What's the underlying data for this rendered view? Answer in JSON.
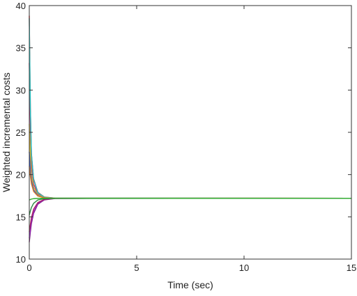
{
  "chart_data": {
    "type": "line",
    "title": "",
    "xlabel": "Time (sec)",
    "ylabel": "Weighted incremental costs",
    "xlim": [
      0,
      15
    ],
    "ylim": [
      10,
      40
    ],
    "x_ticks": [
      0,
      5,
      10,
      15
    ],
    "y_ticks": [
      10,
      15,
      20,
      25,
      30,
      35,
      40
    ],
    "grid": false,
    "legend": "none",
    "converged_value": 17.2,
    "series": [
      {
        "color": "#e02020",
        "values": [
          [
            0,
            38.8
          ],
          [
            0.05,
            28.0
          ],
          [
            0.1,
            22.5
          ],
          [
            0.2,
            19.5
          ],
          [
            0.4,
            17.9
          ],
          [
            0.7,
            17.35
          ],
          [
            1.2,
            17.22
          ],
          [
            15,
            17.2
          ]
        ]
      },
      {
        "color": "#c81e6e",
        "values": [
          [
            0,
            33.2
          ],
          [
            0.05,
            25.5
          ],
          [
            0.1,
            21.3
          ],
          [
            0.2,
            18.9
          ],
          [
            0.4,
            17.7
          ],
          [
            0.7,
            17.3
          ],
          [
            1.2,
            17.21
          ],
          [
            15,
            17.2
          ]
        ]
      },
      {
        "color": "#20c8c8",
        "values": [
          [
            0,
            38.5
          ],
          [
            0.05,
            27.8
          ],
          [
            0.1,
            22.4
          ],
          [
            0.2,
            19.4
          ],
          [
            0.4,
            17.85
          ],
          [
            0.7,
            17.33
          ],
          [
            1.2,
            17.22
          ],
          [
            15,
            17.2
          ]
        ]
      },
      {
        "color": "#d8c020",
        "values": [
          [
            0,
            26.0
          ],
          [
            0.05,
            22.3
          ],
          [
            0.1,
            20.0
          ],
          [
            0.2,
            18.5
          ],
          [
            0.4,
            17.6
          ],
          [
            0.7,
            17.28
          ],
          [
            1.2,
            17.21
          ],
          [
            15,
            17.2
          ]
        ]
      },
      {
        "color": "#3050d0",
        "values": [
          [
            0,
            22.7
          ],
          [
            0.05,
            20.6
          ],
          [
            0.1,
            19.3
          ],
          [
            0.2,
            18.2
          ],
          [
            0.4,
            17.5
          ],
          [
            0.7,
            17.26
          ],
          [
            1.2,
            17.2
          ],
          [
            15,
            17.2
          ]
        ]
      },
      {
        "color": "#e07a20",
        "values": [
          [
            0,
            21.0
          ],
          [
            0.05,
            19.8
          ],
          [
            0.1,
            18.9
          ],
          [
            0.2,
            18.0
          ],
          [
            0.4,
            17.45
          ],
          [
            0.7,
            17.25
          ],
          [
            1.2,
            17.2
          ],
          [
            15,
            17.2
          ]
        ]
      },
      {
        "color": "#7a1a7a",
        "values": [
          [
            0,
            12.0
          ],
          [
            0.05,
            13.2
          ],
          [
            0.1,
            14.2
          ],
          [
            0.2,
            15.4
          ],
          [
            0.4,
            16.5
          ],
          [
            0.7,
            17.0
          ],
          [
            1.2,
            17.17
          ],
          [
            15,
            17.2
          ]
        ]
      },
      {
        "color": "#9a2ad0",
        "values": [
          [
            0,
            12.5
          ],
          [
            0.05,
            13.6
          ],
          [
            0.1,
            14.5
          ],
          [
            0.2,
            15.6
          ],
          [
            0.4,
            16.6
          ],
          [
            0.7,
            17.05
          ],
          [
            1.2,
            17.18
          ],
          [
            15,
            17.2
          ]
        ]
      },
      {
        "color": "#a82060",
        "values": [
          [
            0,
            13.2
          ],
          [
            0.05,
            14.1
          ],
          [
            0.1,
            14.9
          ],
          [
            0.2,
            15.9
          ],
          [
            0.4,
            16.7
          ],
          [
            0.7,
            17.08
          ],
          [
            1.2,
            17.18
          ],
          [
            15,
            17.2
          ]
        ]
      },
      {
        "color": "#2a8a40",
        "values": [
          [
            0,
            15.2
          ],
          [
            0.05,
            15.7
          ],
          [
            0.1,
            16.1
          ],
          [
            0.2,
            16.6
          ],
          [
            0.4,
            17.0
          ],
          [
            0.7,
            17.15
          ],
          [
            1.2,
            17.19
          ],
          [
            15,
            17.2
          ]
        ]
      },
      {
        "color": "#30b030",
        "values": [
          [
            0,
            17.0
          ],
          [
            0.05,
            17.05
          ],
          [
            0.1,
            17.1
          ],
          [
            0.2,
            17.15
          ],
          [
            0.4,
            17.18
          ],
          [
            0.7,
            17.2
          ],
          [
            1.2,
            17.2
          ],
          [
            15,
            17.2
          ]
        ]
      }
    ]
  }
}
